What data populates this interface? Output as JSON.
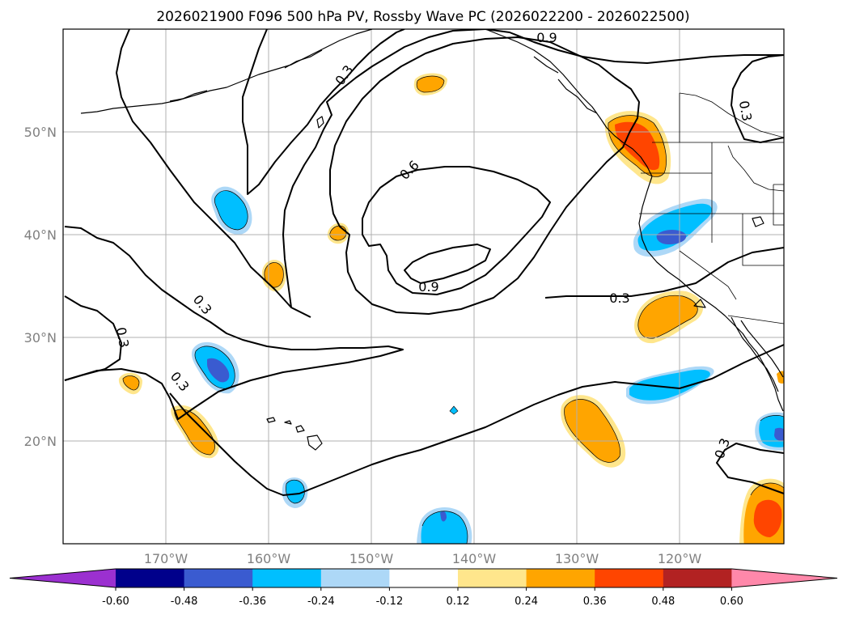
{
  "chart_data": {
    "type": "contour_map",
    "title": "2026021900 F096 500 hPa PV, Rossby Wave PC (2026022200 - 2026022500)",
    "x_ticks": [
      "170°W",
      "160°W",
      "150°W",
      "140°W",
      "130°W",
      "120°W"
    ],
    "y_ticks": [
      "50°N",
      "40°N",
      "30°N",
      "20°N"
    ],
    "x_tick_values": [
      -170,
      -160,
      -150,
      -140,
      -130,
      -120
    ],
    "y_tick_values": [
      50,
      40,
      30,
      20
    ],
    "lon_range": [
      -180,
      -110
    ],
    "lat_range": [
      10,
      60
    ],
    "contour_levels": [
      0.3,
      0.6,
      0.9
    ],
    "contour_labels": [
      "0.3",
      "0.3",
      "0.3",
      "0.3",
      "0.3",
      "0.3",
      "0.6",
      "0.9",
      "0.9"
    ],
    "colorbar": {
      "ticks": [
        "-0.60",
        "-0.48",
        "-0.36",
        "-0.24",
        "-0.12",
        "0.12",
        "0.24",
        "0.36",
        "0.48",
        "0.60"
      ],
      "colors": [
        "#9b30d0",
        "#00008b",
        "#3a5bd0",
        "#00bfff",
        "#add8f7",
        "#ffffff",
        "#ffe68c",
        "#ffa500",
        "#ff4500",
        "#b22222",
        "#ff88aa"
      ]
    },
    "anomalies": [
      {
        "lon": -123,
        "lat": 48.5,
        "value": 0.48
      },
      {
        "lon": -145.5,
        "lat": 56,
        "value": 0.24
      },
      {
        "lon": -153.5,
        "lat": 40.5,
        "value": 0.24
      },
      {
        "lon": -159.5,
        "lat": 36.5,
        "value": 0.24
      },
      {
        "lon": -175,
        "lat": 25.5,
        "value": 0.24
      },
      {
        "lon": -166.5,
        "lat": 21,
        "value": 0.24
      },
      {
        "lon": -129,
        "lat": 21.5,
        "value": 0.24
      },
      {
        "lon": -123,
        "lat": 32,
        "value": 0.24
      },
      {
        "lon": -112,
        "lat": 13.5,
        "value": 0.48
      },
      {
        "lon": -164.5,
        "lat": 43,
        "value": -0.24
      },
      {
        "lon": -121,
        "lat": 40,
        "value": -0.36
      },
      {
        "lon": -165,
        "lat": 28,
        "value": -0.36
      },
      {
        "lon": -121,
        "lat": 25.5,
        "value": -0.24
      },
      {
        "lon": -157.5,
        "lat": 15,
        "value": -0.24
      },
      {
        "lon": -142.5,
        "lat": 11.5,
        "value": -0.24
      },
      {
        "lon": -112,
        "lat": 20,
        "value": -0.36
      },
      {
        "lon": -142,
        "lat": 23,
        "value": -0.12
      }
    ]
  }
}
